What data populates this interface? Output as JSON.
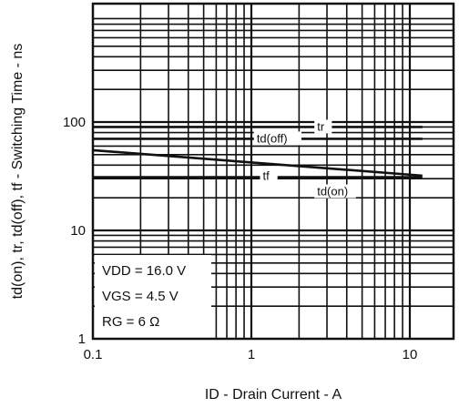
{
  "chart_data": {
    "type": "line",
    "xlabel": "ID - Drain Current - A",
    "ylabel": "td(on), tr, td(off), tf - Switching Time - ns",
    "x_scale": "log",
    "y_scale": "log",
    "xlim": [
      0.1,
      12
    ],
    "ylim": [
      1,
      1000
    ],
    "x_ticks": [
      {
        "value": 0.1,
        "label": "0.1"
      },
      {
        "value": 1,
        "label": "1"
      },
      {
        "value": 10,
        "label": "10"
      }
    ],
    "y_ticks": [
      {
        "value": 1,
        "label": "1"
      },
      {
        "value": 10,
        "label": "10"
      },
      {
        "value": 100,
        "label": "100"
      }
    ],
    "grid": true,
    "series": [
      {
        "name": "tr",
        "x": [
          0.1,
          12
        ],
        "y": [
          90,
          90
        ]
      },
      {
        "name": "td(off)",
        "x": [
          0.1,
          12
        ],
        "y": [
          70,
          70
        ]
      },
      {
        "name": "tf",
        "x": [
          0.1,
          12
        ],
        "y": [
          55,
          32
        ]
      },
      {
        "name": "td(on)",
        "x": [
          0.1,
          12
        ],
        "y": [
          31,
          31
        ]
      }
    ],
    "conditions": [
      "VDD = 16.0 V",
      "VGS = 4.5 V",
      "RG = 6 Ω"
    ]
  }
}
